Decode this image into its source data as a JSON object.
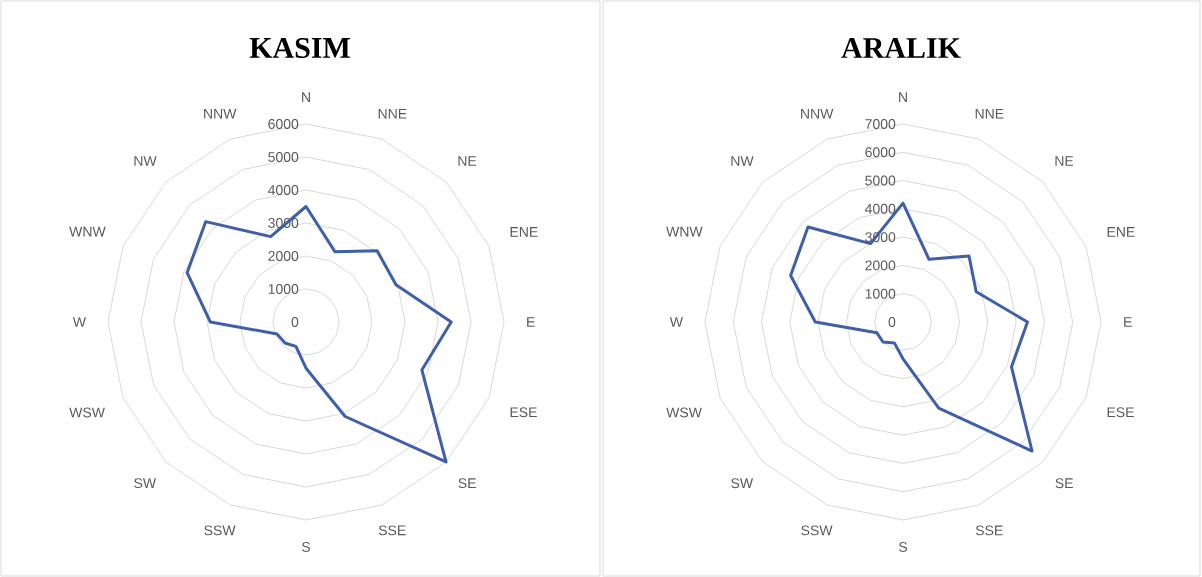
{
  "chart_data": [
    {
      "type": "radar",
      "title": "KASIM",
      "categories": [
        "N",
        "NNE",
        "NE",
        "ENE",
        "E",
        "ESE",
        "SE",
        "SSE",
        "S",
        "SSW",
        "SW",
        "WSW",
        "W",
        "WNW",
        "NW",
        "NNW"
      ],
      "series": [
        {
          "color": "#3f5fa8",
          "values": [
            3500,
            2300,
            3050,
            2950,
            4400,
            3800,
            6000,
            3100,
            1400,
            800,
            900,
            950,
            2900,
            3900,
            4300,
            2800
          ]
        }
      ],
      "ylim": [
        0,
        6000
      ],
      "yticks": [
        0,
        1000,
        2000,
        3000,
        4000,
        5000,
        6000
      ],
      "grid": true
    },
    {
      "type": "radar",
      "title": "ARALIK",
      "categories": [
        "N",
        "NNE",
        "NE",
        "ENE",
        "E",
        "ESE",
        "SE",
        "SSE",
        "S",
        "SSW",
        "SW",
        "WSW",
        "W",
        "WNW",
        "NW",
        "NNW"
      ],
      "series": [
        {
          "color": "#3f5fa8",
          "values": [
            4200,
            2400,
            3300,
            2800,
            4400,
            4150,
            6450,
            3300,
            1300,
            800,
            1000,
            1000,
            3100,
            4300,
            4750,
            3000
          ]
        }
      ],
      "ylim": [
        0,
        7000
      ],
      "yticks": [
        0,
        1000,
        2000,
        3000,
        4000,
        5000,
        6000,
        7000
      ],
      "grid": true
    }
  ]
}
